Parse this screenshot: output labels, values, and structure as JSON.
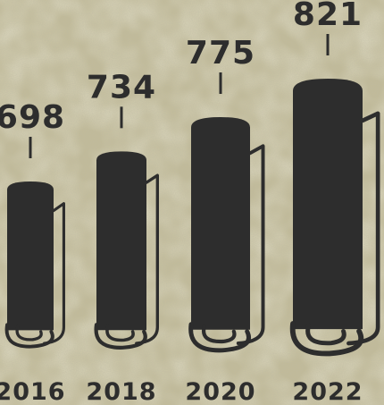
{
  "chart_data": {
    "type": "bar",
    "categories": [
      "2016",
      "2018",
      "2020",
      "2022"
    ],
    "values": [
      698,
      734,
      775,
      821
    ],
    "title": "",
    "xlabel": "",
    "ylabel": "",
    "bar_style": "rolled-scroll pictograph",
    "grid": false,
    "legend": "none"
  },
  "colors": {
    "bar": "#2d2d2d",
    "text": "#2d2d2d",
    "background": "#c2bb98"
  }
}
